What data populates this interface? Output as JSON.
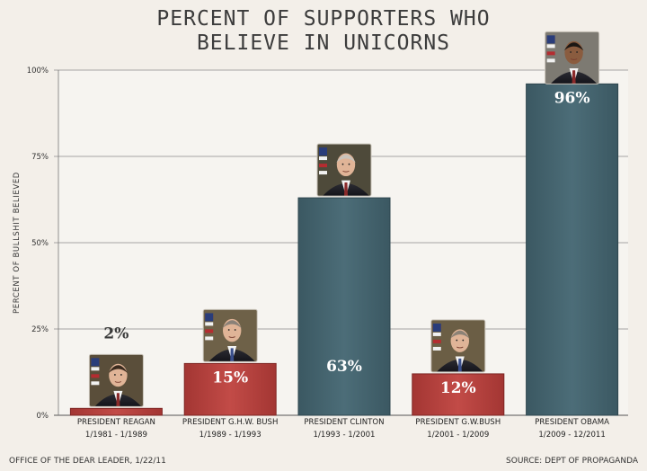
{
  "chart_data": {
    "type": "bar",
    "title_lines": [
      "PERCENT OF SUPPORTERS WHO",
      "BELIEVE IN UNICORNS"
    ],
    "ylabel": "PERCENT OF BULLSHIT BELIEVED",
    "ylim": [
      0,
      100
    ],
    "y_ticks": [
      {
        "value": 0,
        "label": "0%"
      },
      {
        "value": 25,
        "label": "25%"
      },
      {
        "value": 50,
        "label": "50%"
      },
      {
        "value": 75,
        "label": "75%"
      },
      {
        "value": 100,
        "label": "100%"
      }
    ],
    "grid": true,
    "categories": [
      {
        "name": "PRESIDENT REAGAN",
        "term": "1/1981 - 1/1989",
        "value": 2,
        "label": "2%",
        "party_color": "#b8413e",
        "portrait": "reagan-portrait"
      },
      {
        "name": "PRESIDENT G.H.W. BUSH",
        "term": "1/1989 - 1/1993",
        "value": 15,
        "label": "15%",
        "party_color": "#b8413e",
        "portrait": "hw-bush-portrait"
      },
      {
        "name": "PRESIDENT CLINTON",
        "term": "1/1993 - 1/2001",
        "value": 63,
        "label": "63%",
        "party_color": "#44636e",
        "portrait": "clinton-portrait"
      },
      {
        "name": "PRESIDENT G.W.BUSH",
        "term": "1/2001 - 1/2009",
        "value": 12,
        "label": "12%",
        "party_color": "#b8413e",
        "portrait": "gw-bush-portrait"
      },
      {
        "name": "PRESIDENT OBAMA",
        "term": "1/2009 - 12/2011",
        "value": 96,
        "label": "96%",
        "party_color": "#44636e",
        "portrait": "obama-portrait"
      }
    ]
  },
  "footer": {
    "left": "OFFICE OF THE DEAR LEADER, 1/22/11",
    "right": "SOURCE: DEPT OF PROPAGANDA"
  }
}
